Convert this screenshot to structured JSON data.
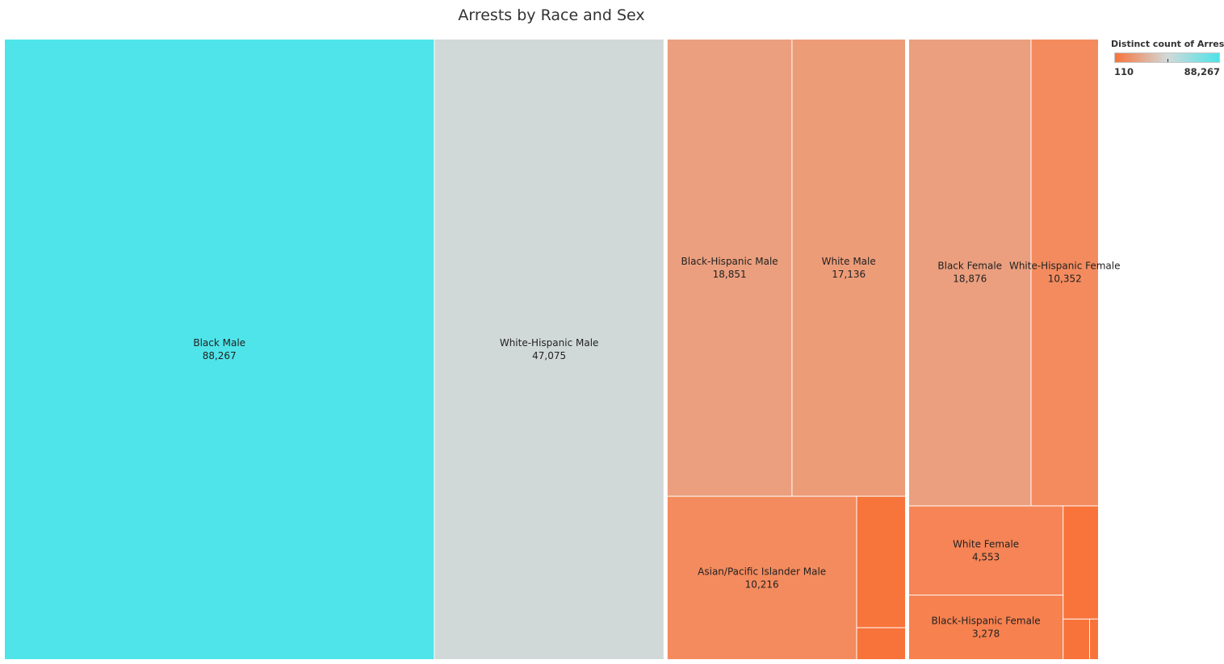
{
  "chart_data": {
    "type": "treemap",
    "title": "Arrests by Race and Sex",
    "legend": {
      "title": "Distinct count of Arrest..",
      "min_label": "110",
      "max_label": "88,267",
      "min_value": 110,
      "max_value": 88267,
      "colors": [
        "#f8733a",
        "#d2d9d8",
        "#4ee3e8"
      ],
      "placement": "top-right"
    },
    "groups": [
      {
        "columns": [
          {
            "items": [
              {
                "name": "Black Male",
                "label": "Black Male",
                "value": 88267,
                "display": "88,267",
                "color": "#4fe4e9"
              },
              {
                "name": "White-Hispanic Male",
                "label": "White-Hispanic Male",
                "value": 47075,
                "display": "47,075",
                "color": "#d1d9d8"
              }
            ]
          }
        ]
      },
      {
        "columns": [
          {
            "items": [
              {
                "name": "Black-Hispanic Male",
                "label": "Black-Hispanic Male",
                "value": 18851,
                "display": "18,851",
                "color": "#eb9f7e"
              },
              {
                "name": "White Male",
                "label": "White Male",
                "value": 17136,
                "display": "17,136",
                "color": "#ed9c78"
              }
            ]
          },
          {
            "split": "horizontal",
            "items": [
              {
                "name": "Asian/Pacific Islander Male",
                "label": "Asian/Pacific Islander Male",
                "value": 10216,
                "display": "10,216",
                "color": "#f48b5e"
              },
              {
                "split": "vertical",
                "items": [
                  {
                    "name": "",
                    "label": "",
                    "value": 2100,
                    "display": "",
                    "color": "#f7743b"
                  },
                  {
                    "name": "",
                    "label": "",
                    "value": 500,
                    "display": "",
                    "color": "#f8733a"
                  }
                ]
              }
            ]
          }
        ]
      },
      {
        "columns": [
          {
            "items": [
              {
                "name": "Black Female",
                "label": "Black Female",
                "value": 18876,
                "display": "18,876",
                "color": "#eb9f7e"
              },
              {
                "name": "White-Hispanic Female",
                "label": "White-Hispanic Female",
                "value": 10352,
                "display": "10,352",
                "color": "#f48b5e"
              }
            ]
          },
          {
            "split": "horizontal",
            "items": [
              {
                "split": "vertical",
                "items": [
                  {
                    "name": "White Female",
                    "label": "White Female",
                    "value": 4553,
                    "display": "4,553",
                    "color": "#f68456"
                  },
                  {
                    "name": "Black-Hispanic Female",
                    "label": "Black-Hispanic Female",
                    "value": 3278,
                    "display": "3,278",
                    "color": "#f7814f"
                  }
                ]
              },
              {
                "split": "vertical",
                "items": [
                  {
                    "name": "",
                    "label": "",
                    "value": 1300,
                    "display": "",
                    "color": "#f8743b"
                  },
                  {
                    "split": "horizontal",
                    "items": [
                      {
                        "name": "",
                        "label": "",
                        "value": 350,
                        "display": "",
                        "color": "#f8733a"
                      },
                      {
                        "name": "",
                        "label": "",
                        "value": 110,
                        "display": "",
                        "color": "#f8733a"
                      }
                    ]
                  }
                ]
              }
            ]
          }
        ]
      }
    ]
  }
}
